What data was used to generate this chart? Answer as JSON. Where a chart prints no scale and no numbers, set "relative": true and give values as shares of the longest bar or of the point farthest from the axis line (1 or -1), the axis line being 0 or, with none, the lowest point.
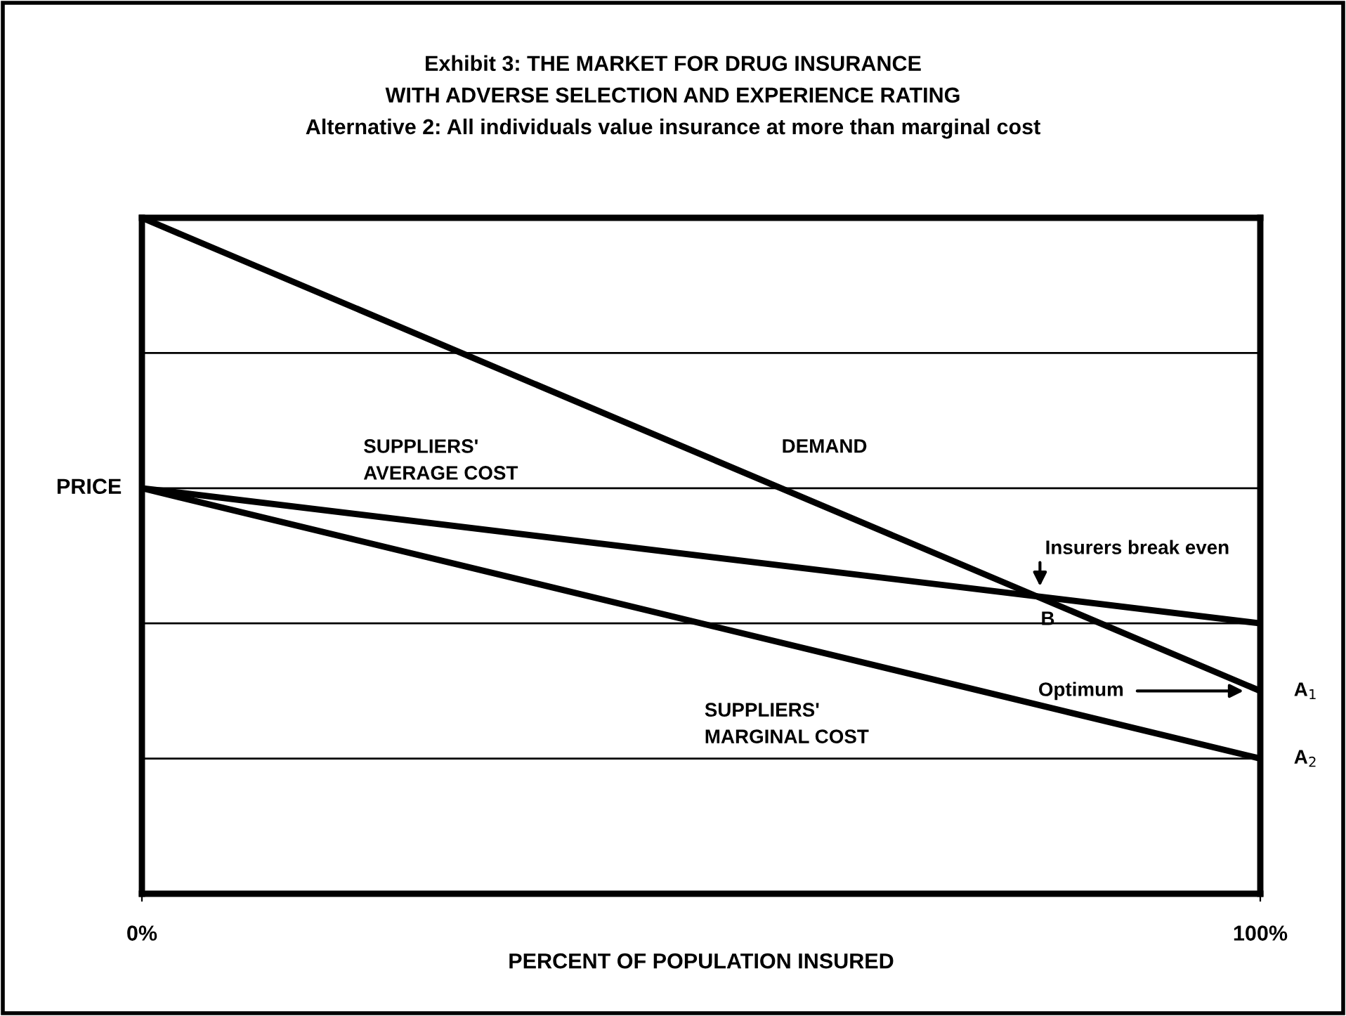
{
  "chart_data": {
    "type": "line",
    "title": "Exhibit 3: THE MARKET FOR DRUG INSURANCE\nWITH ADVERSE SELECTION AND EXPERIENCE RATING\nAlternative 2: All individuals value insurance at more than marginal cost",
    "xlabel": "PERCENT OF POPULATION INSURED",
    "ylabel": "PRICE",
    "relative": true,
    "x": [
      0,
      100
    ],
    "series": [
      {
        "color": "#000000",
        "values": [
          1,
          0.3
        ]
      },
      {
        "color": "#000000",
        "values": [
          0.6,
          0.4
        ]
      },
      {
        "color": "#000000",
        "values": [
          0.6,
          0.2
        ]
      }
    ],
    "xlim": [
      0,
      100
    ],
    "xticks": [
      {
        "value": 0,
        "label": "0%"
      },
      {
        "value": 100,
        "label": "100%"
      }
    ],
    "ref_lines": [
      {
        "axis": "y",
        "value": 0.8,
        "color": "#000000"
      },
      {
        "axis": "y",
        "value": 0.6,
        "color": "#000000"
      },
      {
        "axis": "y",
        "value": 0.4,
        "color": "#000000"
      },
      {
        "axis": "y",
        "value": 0.2,
        "color": "#000000"
      }
    ],
    "annotations": [
      "SUPPLIERS'\nAVERAGE COST",
      "DEMAND",
      "Insurers break even",
      "B",
      "SUPPLIERS'\nMARGINAL COST",
      "Optimum",
      "A$_{1}$",
      "A$_{2}$"
    ],
    "legend": false,
    "marker": "none",
    "line_style": "solid"
  }
}
